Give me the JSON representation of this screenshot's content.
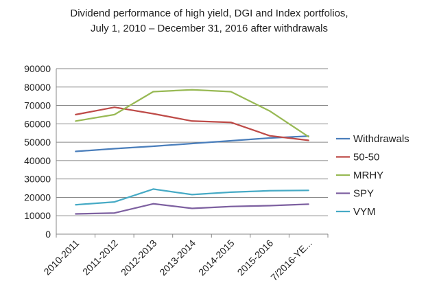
{
  "chart_data": {
    "type": "line",
    "title_lines": [
      "Dividend performance of high yield, DGI and Index portfolios,",
      "July 1, 2010 – December 31, 2016 after withdrawals"
    ],
    "categories": [
      "2010-2011",
      "2011-2012",
      "2012-2013",
      "2013-2014",
      "2014-2015",
      "2015-2016",
      "7/2016-YE..."
    ],
    "ylim": [
      0,
      90000
    ],
    "yticks": [
      "0",
      "10000",
      "20000",
      "30000",
      "40000",
      "50000",
      "60000",
      "70000",
      "80000",
      "90000"
    ],
    "grid": "horizontal",
    "legend_position": "right",
    "series": [
      {
        "name": "Withdrawals",
        "color": "#4A7EBB",
        "values": [
          45000,
          46500,
          47800,
          49300,
          50800,
          52300,
          53300
        ]
      },
      {
        "name": "50-50",
        "color": "#BE4B48",
        "values": [
          65000,
          69000,
          65500,
          61500,
          60800,
          53500,
          51000
        ]
      },
      {
        "name": "MRHY",
        "color": "#98B954",
        "values": [
          61500,
          65000,
          77500,
          78500,
          77500,
          67000,
          53000
        ]
      },
      {
        "name": "SPY",
        "color": "#7D60A0",
        "values": [
          11000,
          11500,
          16500,
          14000,
          15000,
          15500,
          16300
        ]
      },
      {
        "name": "VYM",
        "color": "#46AAC5",
        "values": [
          16000,
          17500,
          24500,
          21500,
          22800,
          23600,
          23800
        ]
      }
    ]
  }
}
